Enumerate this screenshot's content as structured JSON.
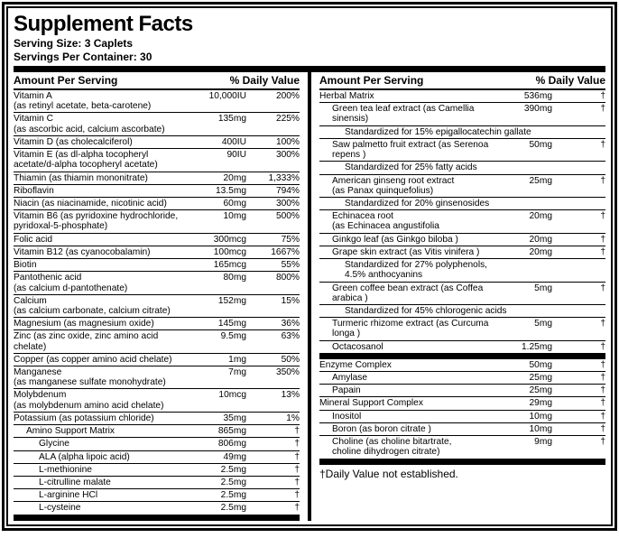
{
  "title": "Supplement Facts",
  "serving_size": "Serving Size: 3 Caplets",
  "servings_per": "Servings Per Container: 30",
  "header_amount": "Amount Per Serving",
  "header_dv": "% Daily Value",
  "dagger_note": "†Daily Value not established.",
  "left": [
    {
      "n": "Vitamin A\n(as retinyl acetate, beta-carotene)",
      "a": "10,000IU",
      "d": "200%"
    },
    {
      "n": "Vitamin C\n(as ascorbic acid, calcium ascorbate)",
      "a": "135mg",
      "d": "225%"
    },
    {
      "n": "Vitamin D (as cholecalciferol)",
      "a": "400IU",
      "d": "100%"
    },
    {
      "n": "Vitamin E (as dl-alpha tocopheryl\nacetate/d-alpha tocopheryl acetate)",
      "a": "90IU",
      "d": "300%"
    },
    {
      "n": "Thiamin (as thiamin mononitrate)",
      "a": "20mg",
      "d": "1,333%"
    },
    {
      "n": "Riboflavin",
      "a": "13.5mg",
      "d": "794%"
    },
    {
      "n": "Niacin (as niacinamide, nicotinic acid)",
      "a": "60mg",
      "d": "300%"
    },
    {
      "n": "Vitamin B6 (as pyridoxine hydrochloride,\npyridoxal-5-phosphate)",
      "a": "10mg",
      "d": "500%"
    },
    {
      "n": "Folic acid",
      "a": "300mcg",
      "d": "75%"
    },
    {
      "n": "Vitamin B12 (as cyanocobalamin)",
      "a": "100mcg",
      "d": "1667%"
    },
    {
      "n": "Biotin",
      "a": "165mcg",
      "d": "55%"
    },
    {
      "n": "Pantothenic acid\n(as calcium d-pantothenate)",
      "a": "80mg",
      "d": "800%"
    },
    {
      "n": "Calcium\n(as calcium carbonate, calcium citrate)",
      "a": "152mg",
      "d": "15%"
    },
    {
      "n": "Magnesium (as magnesium oxide)",
      "a": "145mg",
      "d": "36%"
    },
    {
      "n": "Zinc (as zinc oxide, zinc amino acid chelate)",
      "a": "9.5mg",
      "d": "63%"
    },
    {
      "n": "Copper (as copper amino acid chelate)",
      "a": "1mg",
      "d": "50%"
    },
    {
      "n": "Manganese\n(as manganese sulfate monohydrate)",
      "a": "7mg",
      "d": "350%"
    },
    {
      "n": "Molybdenum\n(as molybdenum amino acid chelate)",
      "a": "10mcg",
      "d": "13%"
    },
    {
      "n": "Potassium (as potassium chloride)",
      "a": "35mg",
      "d": "1%"
    },
    {
      "n": "Amino Support Matrix",
      "a": "865mg",
      "d": "†",
      "sub": 1
    },
    {
      "n": "Glycine",
      "a": "806mg",
      "d": "†",
      "sub": 2
    },
    {
      "n": "ALA (alpha lipoic acid)",
      "a": "49mg",
      "d": "†",
      "sub": 2
    },
    {
      "n": "L-methionine",
      "a": "2.5mg",
      "d": "†",
      "sub": 2
    },
    {
      "n": "L-citrulline malate",
      "a": "2.5mg",
      "d": "†",
      "sub": 2
    },
    {
      "n": "L-arginine HCl",
      "a": "2.5mg",
      "d": "†",
      "sub": 2
    },
    {
      "n": "L-cysteine",
      "a": "2.5mg",
      "d": "†",
      "sub": 2,
      "last": true
    }
  ],
  "right": [
    {
      "n": "Herbal Matrix",
      "a": "536mg",
      "d": "†"
    },
    {
      "n": "Green tea leaf extract (as Camellia sinensis)",
      "a": "390mg",
      "d": "†",
      "sub": 1
    },
    {
      "n": "Standardized for 15% epigallocatechin gallate",
      "sub": 2,
      "nb": 1
    },
    {
      "n": "Saw palmetto fruit extract (as Serenoa repens )",
      "a": "50mg",
      "d": "†",
      "sub": 1
    },
    {
      "n": "Standardized for 25% fatty acids",
      "sub": 2,
      "nb": 1
    },
    {
      "n": "American ginseng root extract\n(as Panax quinquefolius)",
      "a": "25mg",
      "d": "†",
      "sub": 1
    },
    {
      "n": "Standardized for 20% ginsenosides",
      "sub": 2,
      "nb": 1
    },
    {
      "n": "Echinacea root\n(as Echinacea angustifolia",
      "a": "20mg",
      "d": "†",
      "sub": 1
    },
    {
      "n": "Ginkgo leaf (as Ginkgo biloba )",
      "a": "20mg",
      "d": "†",
      "sub": 1
    },
    {
      "n": "Grape skin extract (as Vitis vinifera )",
      "a": "20mg",
      "d": "†",
      "sub": 1
    },
    {
      "n": "Standardized for 27% polyphenols,\n4.5% anthocyanins",
      "sub": 2,
      "nb": 1
    },
    {
      "n": "Green coffee bean extract (as Coffea arabica )",
      "a": "5mg",
      "d": "†",
      "sub": 1
    },
    {
      "n": "Standardized for 45% chlorogenic acids",
      "sub": 2,
      "nb": 1
    },
    {
      "n": "Turmeric rhizome extract (as Curcuma longa  )",
      "a": "5mg",
      "d": "†",
      "sub": 1
    },
    {
      "n": "Octacosanol",
      "a": "1.25mg",
      "d": "†",
      "sub": 1,
      "thick": true
    },
    {
      "n": "Enzyme Complex",
      "a": "50mg",
      "d": "†"
    },
    {
      "n": "Amylase",
      "a": "25mg",
      "d": "†",
      "sub": 1
    },
    {
      "n": "Papain",
      "a": "25mg",
      "d": "†",
      "sub": 1
    },
    {
      "n": "Mineral Support Complex",
      "a": "29mg",
      "d": "†"
    },
    {
      "n": "Inositol",
      "a": "10mg",
      "d": "†",
      "sub": 1
    },
    {
      "n": "Boron (as boron citrate )",
      "a": "10mg",
      "d": "†",
      "sub": 1
    },
    {
      "n": "Choline (as choline bitartrate,\ncholine dihydrogen citrate)",
      "a": "9mg",
      "d": "†",
      "sub": 1,
      "last": true
    }
  ]
}
